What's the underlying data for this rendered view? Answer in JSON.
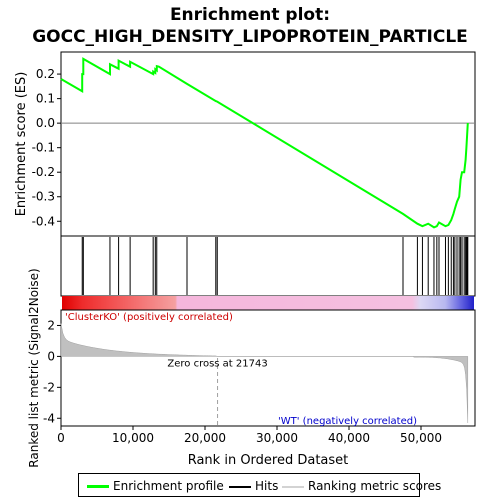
{
  "chart_data": {
    "type": "line",
    "title_line1": "Enrichment plot:",
    "title_line2": "GOCC_HIGH_DENSITY_LIPOPROTEIN_PARTICLE",
    "es_panel": {
      "ylabel": "Enrichment score (ES)",
      "ylim": [
        -0.46,
        0.29
      ],
      "yticks": [
        0.2,
        0.1,
        0.0,
        -0.1,
        -0.2,
        -0.3,
        -0.4
      ],
      "ytick_labels": [
        "0.2",
        "0.1",
        "0.0",
        "-0.1",
        "-0.2",
        "-0.3",
        "-0.4"
      ],
      "series_color": "#00ff00",
      "x": [
        0,
        2950,
        2950,
        3100,
        3100,
        6800,
        6800,
        8000,
        8000,
        9600,
        9600,
        12800,
        12800,
        13100,
        13100,
        13300,
        13300,
        13600,
        17500,
        21500,
        21700,
        47500,
        49500,
        50200,
        51000,
        51800,
        52200,
        52500,
        53400,
        53800,
        54200,
        54500,
        54700,
        55000,
        55300,
        55500,
        55700,
        56000,
        56200,
        56300,
        56400,
        56500
      ],
      "y": [
        0.18,
        0.13,
        0.2,
        0.2,
        0.262,
        0.2,
        0.24,
        0.222,
        0.255,
        0.23,
        0.25,
        0.2,
        0.21,
        0.205,
        0.22,
        0.215,
        0.232,
        0.23,
        0.16,
        0.09,
        0.088,
        -0.37,
        -0.41,
        -0.42,
        -0.41,
        -0.425,
        -0.42,
        -0.405,
        -0.42,
        -0.415,
        -0.395,
        -0.37,
        -0.35,
        -0.32,
        -0.3,
        -0.23,
        -0.2,
        -0.2,
        -0.15,
        -0.1,
        -0.05,
        0.0
      ]
    },
    "hits": [
      0,
      2950,
      3100,
      6800,
      8000,
      9600,
      12800,
      13100,
      13300,
      17500,
      21500,
      21700,
      47500,
      49500,
      50200,
      51000,
      51800,
      52200,
      52500,
      53400,
      53800,
      54200,
      54500,
      54700,
      55000,
      55300,
      55500,
      55700,
      56000,
      56200,
      56300,
      56400,
      56500
    ],
    "rank_panel": {
      "ylabel": "Ranked list metric (Signal2Noise)",
      "xlabel": "Rank in Ordered Dataset",
      "ylim": [
        -4.5,
        3.0
      ],
      "yticks": [
        2,
        0,
        -2,
        -4
      ],
      "ytick_labels": [
        "2",
        "0",
        "-2",
        "-4"
      ],
      "xlim": [
        0,
        57500
      ],
      "xticks": [
        0,
        10000,
        20000,
        30000,
        40000,
        50000
      ],
      "xtick_labels": [
        "0",
        "10,000",
        "20,000",
        "30,000",
        "40,000",
        "50,000"
      ],
      "zero_cross": 21743,
      "zero_cross_label": "Zero cross at 21743",
      "pos_label": "'ClusterKO' (positively correlated)",
      "neg_label": "'WT' (negatively correlated)"
    },
    "legend": [
      {
        "label": "Enrichment profile",
        "color": "#00ff00"
      },
      {
        "label": "Hits",
        "color": "#000000"
      },
      {
        "label": "Ranking metric scores",
        "color": "#d3d3d3"
      }
    ]
  }
}
